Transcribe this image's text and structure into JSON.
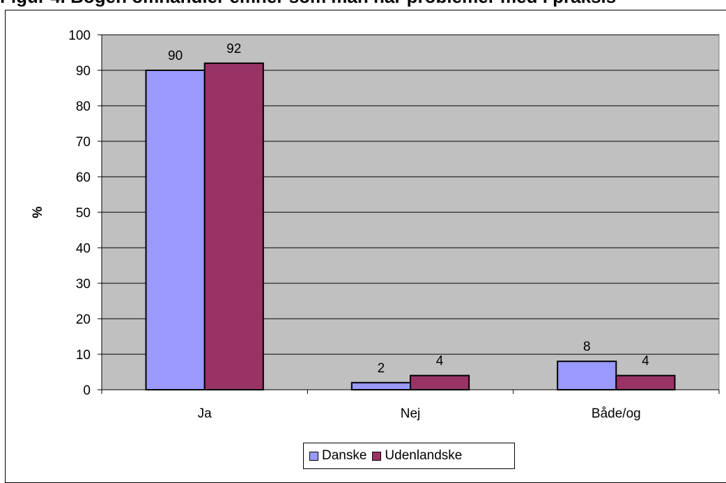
{
  "page": {
    "title": "Figur 4. Bogen omhandler emner som man har problemer med i praksis"
  },
  "chart_data": {
    "type": "bar",
    "title": "",
    "xlabel": "",
    "ylabel": "%",
    "categories": [
      "Ja",
      "Nej",
      "Både/og"
    ],
    "series": [
      {
        "name": "Danske",
        "values": [
          90,
          2,
          8
        ],
        "color": "#9999ff"
      },
      {
        "name": "Udenlandske",
        "values": [
          92,
          4,
          4
        ],
        "color": "#993366"
      }
    ],
    "ylim": [
      0,
      100
    ],
    "yticks": [
      0,
      10,
      20,
      30,
      40,
      50,
      60,
      70,
      80,
      90,
      100
    ],
    "grid": true,
    "plot_background": "#c0c0c0",
    "legend": "bottom",
    "data_labels": true
  }
}
